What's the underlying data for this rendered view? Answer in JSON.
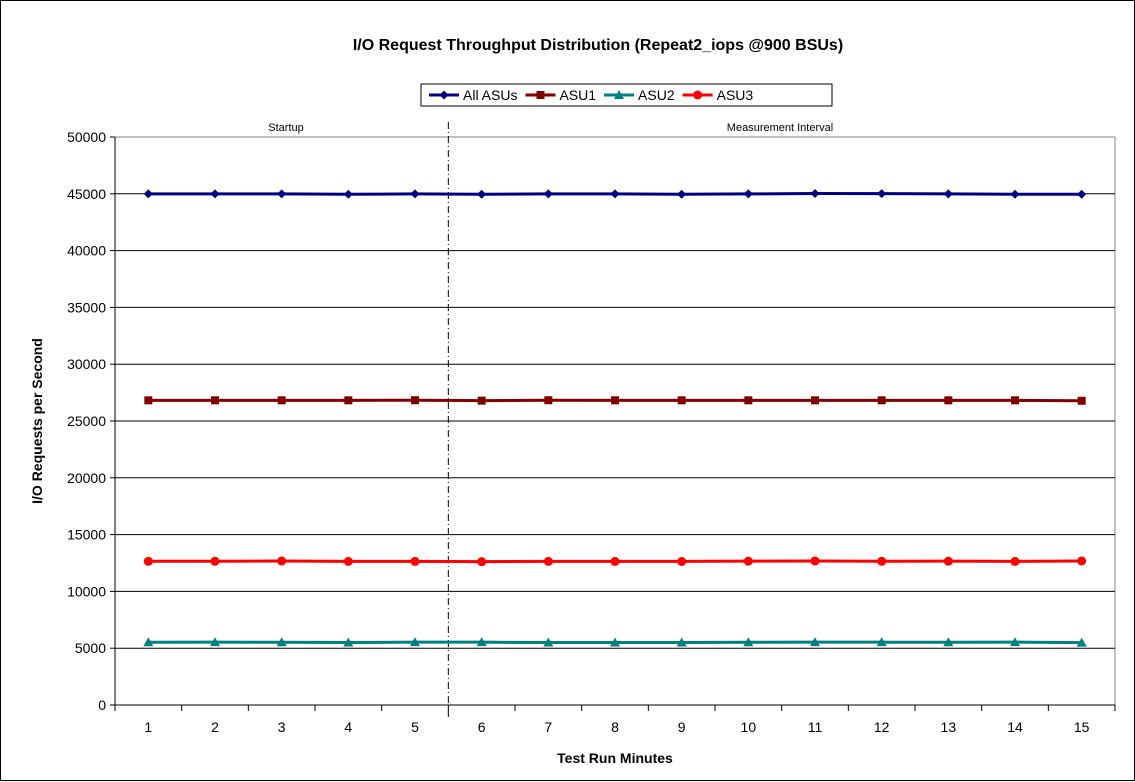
{
  "chart_data": {
    "type": "line",
    "title": "I/O Request Throughput Distribution (Repeat2_iops @900 BSUs)",
    "xlabel": "Test Run Minutes",
    "ylabel": "I/O Requests per Second",
    "ylim": [
      0,
      50000
    ],
    "yticks": [
      "0",
      "5000",
      "10000",
      "15000",
      "20000",
      "25000",
      "30000",
      "35000",
      "40000",
      "45000",
      "50000"
    ],
    "categories": [
      "1",
      "2",
      "3",
      "4",
      "5",
      "6",
      "7",
      "8",
      "9",
      "10",
      "11",
      "12",
      "13",
      "14",
      "15"
    ],
    "grid": true,
    "legend_position": "top",
    "sections": {
      "startup_label": "Startup",
      "measurement_label": "Measurement Interval",
      "divider_after_category": "5"
    },
    "series": [
      {
        "name": "All ASUs",
        "color": "#000080",
        "marker": "diamond",
        "values": [
          44990,
          44990,
          44990,
          44960,
          44990,
          44960,
          44990,
          44990,
          44960,
          44990,
          45030,
          45020,
          44990,
          44960,
          44960
        ]
      },
      {
        "name": "ASU1",
        "color": "#800000",
        "marker": "square",
        "values": [
          26820,
          26820,
          26820,
          26820,
          26830,
          26790,
          26830,
          26820,
          26820,
          26820,
          26820,
          26820,
          26820,
          26820,
          26780
        ]
      },
      {
        "name": "ASU2",
        "color": "#008080",
        "marker": "triangle",
        "values": [
          5520,
          5530,
          5520,
          5500,
          5530,
          5530,
          5500,
          5500,
          5500,
          5520,
          5530,
          5530,
          5520,
          5530,
          5490
        ]
      },
      {
        "name": "ASU3",
        "color": "#ff0000",
        "marker": "circle",
        "values": [
          12650,
          12650,
          12680,
          12640,
          12640,
          12620,
          12640,
          12640,
          12640,
          12660,
          12680,
          12650,
          12660,
          12640,
          12680
        ]
      }
    ]
  }
}
